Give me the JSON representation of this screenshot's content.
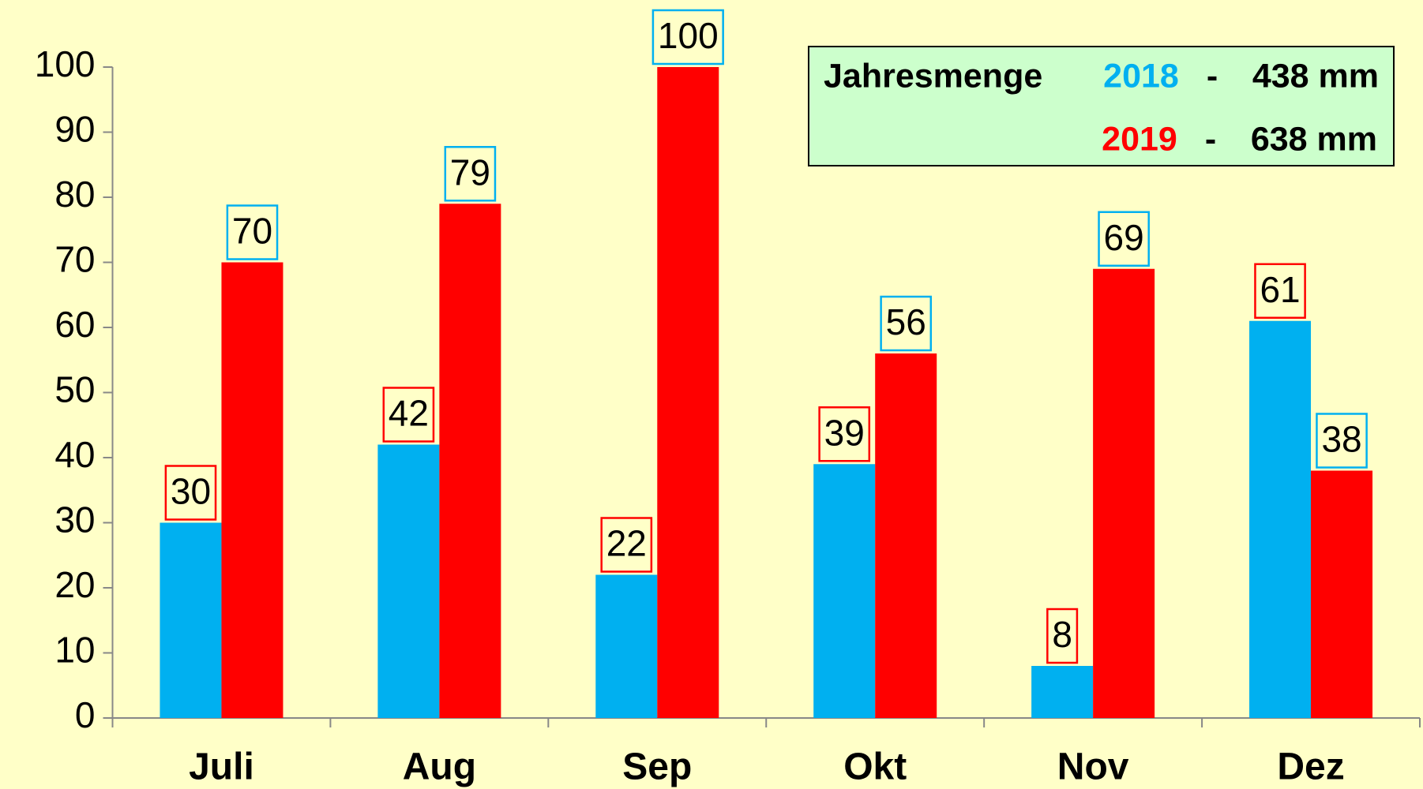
{
  "chart_data": {
    "type": "bar",
    "categories": [
      "Juli",
      "Aug",
      "Sep",
      "Okt",
      "Nov",
      "Dez"
    ],
    "series": [
      {
        "name": "2018",
        "color": "#00b0f0",
        "label_border": "#ff0000",
        "total": "438 mm",
        "values": [
          30,
          42,
          22,
          39,
          8,
          61
        ]
      },
      {
        "name": "2019",
        "color": "#ff0000",
        "label_border": "#00b0f0",
        "total": "638 mm",
        "values": [
          70,
          79,
          100,
          56,
          69,
          38
        ]
      }
    ],
    "annotation": "Jahresmenge",
    "separator": "-",
    "ylim": [
      0,
      100
    ],
    "yticks": [
      0,
      10,
      20,
      30,
      40,
      50,
      60,
      70,
      80,
      90,
      100
    ]
  }
}
